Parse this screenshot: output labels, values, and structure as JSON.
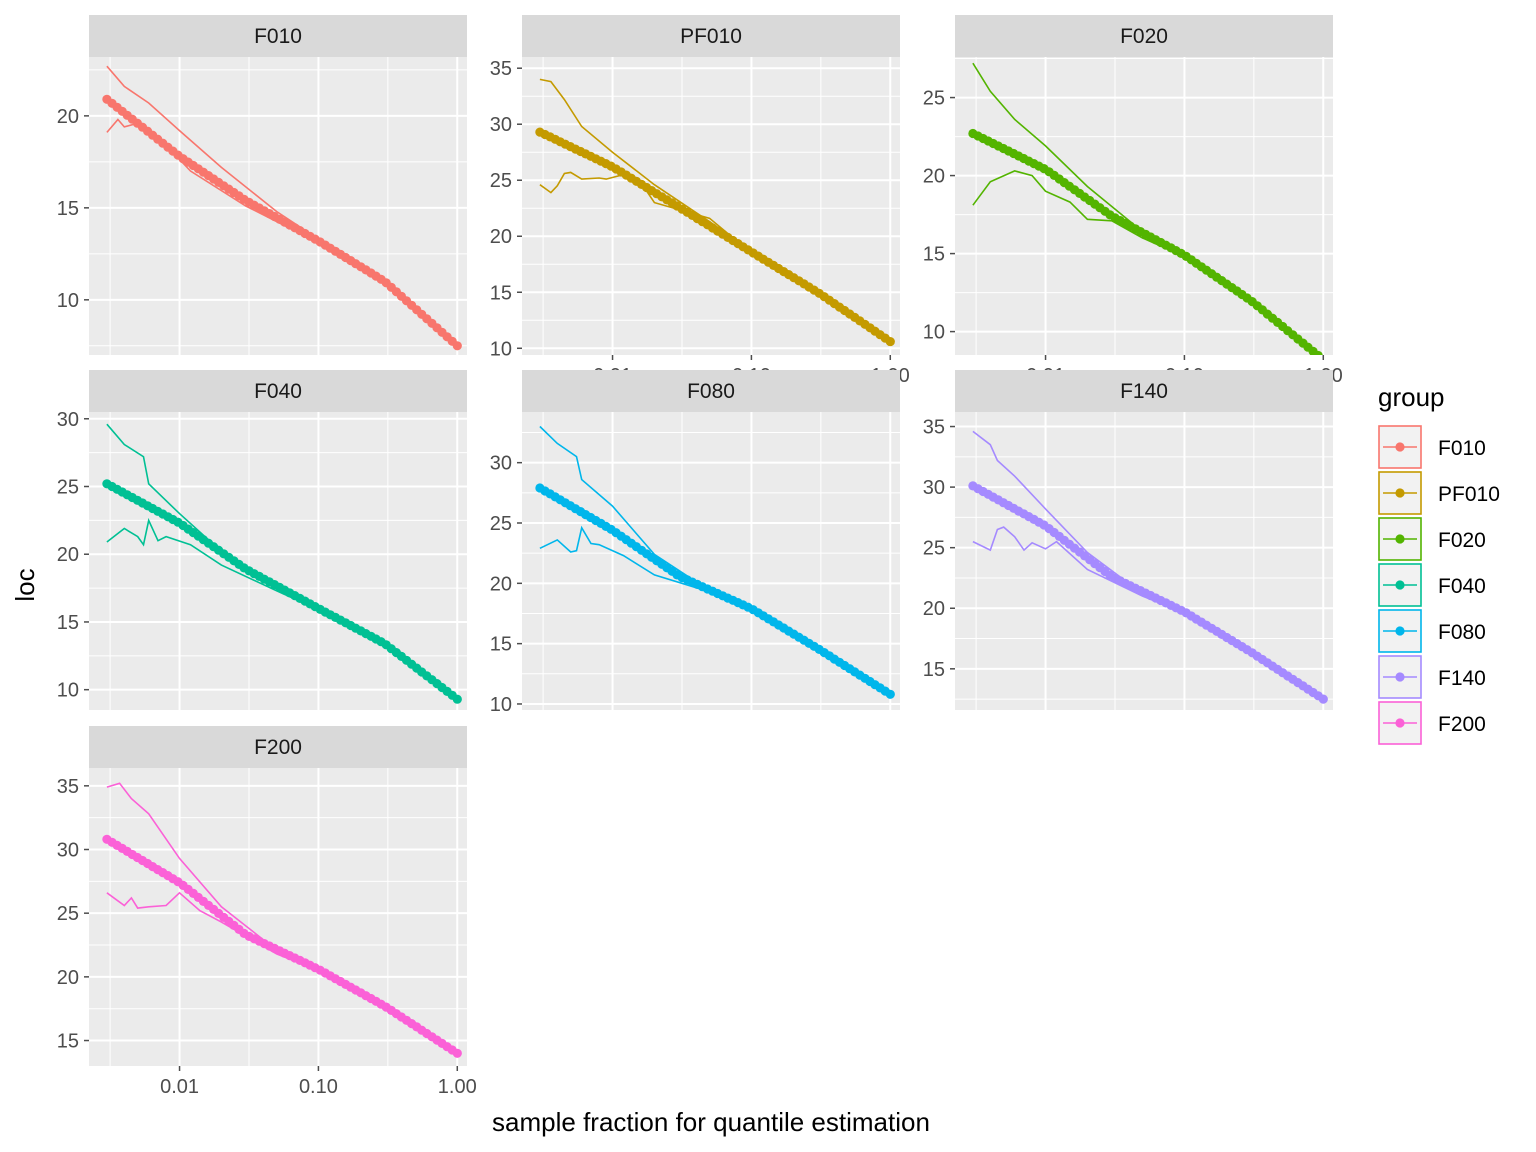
{
  "chart_data": {
    "type": "line",
    "xlabel": "sample fraction for quantile estimation",
    "ylabel": "loc",
    "x_scale": "log10",
    "x_ticks": [
      0.01,
      0.1,
      1.0
    ],
    "x_tick_labels": [
      "0.01",
      "0.10",
      "1.00"
    ],
    "xlim": [
      0.0025,
      1.0
    ],
    "legend": {
      "title": "group",
      "position": "right",
      "entries": [
        "F010",
        "PF010",
        "F020",
        "F040",
        "F080",
        "F140",
        "F200"
      ]
    },
    "panels": [
      {
        "group": "F010",
        "color": "#F8766D",
        "ylim": [
          7.0,
          23.2
        ],
        "y_ticks": [
          10,
          15,
          20
        ],
        "y_tick_labels": [
          "10",
          "15",
          "20"
        ],
        "estimate": [
          [
            0.003,
            20.9
          ],
          [
            0.01,
            17.8
          ],
          [
            0.03,
            15.4
          ],
          [
            0.1,
            13.2
          ],
          [
            0.3,
            11.0
          ],
          [
            1.0,
            7.5
          ]
        ],
        "upper": [
          [
            0.003,
            22.7
          ],
          [
            0.004,
            21.6
          ],
          [
            0.006,
            20.7
          ],
          [
            0.01,
            19.2
          ],
          [
            0.02,
            17.2
          ],
          [
            0.05,
            14.8
          ],
          [
            0.1,
            13.3
          ]
        ],
        "lower": [
          [
            0.003,
            19.1
          ],
          [
            0.0036,
            19.8
          ],
          [
            0.004,
            19.4
          ],
          [
            0.005,
            19.6
          ],
          [
            0.006,
            19.0
          ],
          [
            0.0075,
            18.5
          ],
          [
            0.008,
            18.4
          ],
          [
            0.012,
            17.0
          ],
          [
            0.03,
            15.1
          ],
          [
            0.1,
            13.1
          ]
        ]
      },
      {
        "group": "PF010",
        "color": "#C49A00",
        "ylim": [
          9.4,
          36.0
        ],
        "y_ticks": [
          10,
          15,
          20,
          25,
          30,
          35
        ],
        "y_tick_labels": [
          "10",
          "15",
          "20",
          "25",
          "30",
          "35"
        ],
        "estimate": [
          [
            0.003,
            29.3
          ],
          [
            0.01,
            26.2
          ],
          [
            0.03,
            22.6
          ],
          [
            0.1,
            18.6
          ],
          [
            0.3,
            15.0
          ],
          [
            1.0,
            10.6
          ]
        ],
        "upper": [
          [
            0.003,
            34.0
          ],
          [
            0.0036,
            33.8
          ],
          [
            0.0045,
            32.2
          ],
          [
            0.006,
            29.8
          ],
          [
            0.01,
            27.5
          ],
          [
            0.02,
            24.6
          ],
          [
            0.05,
            21.3
          ],
          [
            0.1,
            18.7
          ]
        ],
        "lower": [
          [
            0.003,
            24.6
          ],
          [
            0.0036,
            23.9
          ],
          [
            0.004,
            24.5
          ],
          [
            0.0045,
            25.6
          ],
          [
            0.005,
            25.7
          ],
          [
            0.006,
            25.1
          ],
          [
            0.008,
            25.2
          ],
          [
            0.009,
            25.1
          ],
          [
            0.012,
            25.5
          ],
          [
            0.016,
            24.8
          ],
          [
            0.02,
            23.0
          ],
          [
            0.05,
            21.6
          ],
          [
            0.1,
            18.5
          ]
        ]
      },
      {
        "group": "F020",
        "color": "#53B400",
        "ylim": [
          8.5,
          27.6
        ],
        "y_ticks": [
          10,
          15,
          20,
          25
        ],
        "y_tick_labels": [
          "10",
          "15",
          "20",
          "25"
        ],
        "estimate": [
          [
            0.003,
            22.7
          ],
          [
            0.01,
            20.4
          ],
          [
            0.03,
            17.4
          ],
          [
            0.1,
            14.9
          ],
          [
            0.3,
            12.0
          ],
          [
            1.0,
            8.2
          ]
        ],
        "upper": [
          [
            0.003,
            27.2
          ],
          [
            0.004,
            25.4
          ],
          [
            0.006,
            23.6
          ],
          [
            0.01,
            21.9
          ],
          [
            0.02,
            19.3
          ],
          [
            0.05,
            16.4
          ],
          [
            0.1,
            15.0
          ]
        ],
        "lower": [
          [
            0.003,
            18.1
          ],
          [
            0.004,
            19.6
          ],
          [
            0.006,
            20.3
          ],
          [
            0.008,
            20.0
          ],
          [
            0.01,
            19.0
          ],
          [
            0.015,
            18.3
          ],
          [
            0.02,
            17.2
          ],
          [
            0.03,
            17.1
          ],
          [
            0.05,
            16.0
          ],
          [
            0.1,
            14.8
          ]
        ]
      },
      {
        "group": "F040",
        "color": "#00C094",
        "ylim": [
          8.5,
          30.5
        ],
        "y_ticks": [
          10,
          15,
          20,
          25,
          30
        ],
        "y_tick_labels": [
          "10",
          "15",
          "20",
          "25",
          "30"
        ],
        "estimate": [
          [
            0.003,
            25.2
          ],
          [
            0.01,
            22.3
          ],
          [
            0.03,
            18.9
          ],
          [
            0.1,
            16.0
          ],
          [
            0.3,
            13.4
          ],
          [
            1.0,
            9.3
          ]
        ],
        "upper": [
          [
            0.003,
            29.6
          ],
          [
            0.004,
            28.1
          ],
          [
            0.0055,
            27.2
          ],
          [
            0.006,
            25.2
          ],
          [
            0.01,
            23.0
          ],
          [
            0.02,
            20.2
          ],
          [
            0.05,
            17.5
          ],
          [
            0.1,
            16.0
          ]
        ],
        "lower": [
          [
            0.003,
            20.9
          ],
          [
            0.004,
            21.9
          ],
          [
            0.005,
            21.3
          ],
          [
            0.0055,
            20.7
          ],
          [
            0.006,
            22.5
          ],
          [
            0.007,
            21.0
          ],
          [
            0.008,
            21.3
          ],
          [
            0.012,
            20.7
          ],
          [
            0.02,
            19.2
          ],
          [
            0.05,
            17.3
          ],
          [
            0.1,
            15.9
          ]
        ]
      },
      {
        "group": "F080",
        "color": "#00B6EB",
        "ylim": [
          9.5,
          34.2
        ],
        "y_ticks": [
          10,
          15,
          20,
          25,
          30
        ],
        "y_tick_labels": [
          "10",
          "15",
          "20",
          "25",
          "30"
        ],
        "estimate": [
          [
            0.003,
            27.9
          ],
          [
            0.01,
            24.4
          ],
          [
            0.03,
            20.6
          ],
          [
            0.1,
            17.9
          ],
          [
            0.3,
            14.6
          ],
          [
            1.0,
            10.8
          ]
        ],
        "upper": [
          [
            0.003,
            33.0
          ],
          [
            0.004,
            31.6
          ],
          [
            0.0055,
            30.5
          ],
          [
            0.006,
            28.6
          ],
          [
            0.01,
            26.4
          ],
          [
            0.02,
            22.4
          ],
          [
            0.05,
            19.4
          ],
          [
            0.1,
            18.0
          ]
        ],
        "lower": [
          [
            0.003,
            22.9
          ],
          [
            0.004,
            23.6
          ],
          [
            0.005,
            22.6
          ],
          [
            0.0055,
            22.7
          ],
          [
            0.006,
            24.6
          ],
          [
            0.007,
            23.3
          ],
          [
            0.008,
            23.2
          ],
          [
            0.012,
            22.3
          ],
          [
            0.02,
            20.7
          ],
          [
            0.05,
            19.3
          ],
          [
            0.1,
            17.8
          ]
        ]
      },
      {
        "group": "F140",
        "color": "#A58AFF",
        "ylim": [
          11.6,
          36.2
        ],
        "y_ticks": [
          15,
          20,
          25,
          30,
          35
        ],
        "y_tick_labels": [
          "15",
          "20",
          "25",
          "30",
          "35"
        ],
        "estimate": [
          [
            0.003,
            30.1
          ],
          [
            0.01,
            26.8
          ],
          [
            0.03,
            22.6
          ],
          [
            0.1,
            19.7
          ],
          [
            0.3,
            16.4
          ],
          [
            1.0,
            12.5
          ]
        ],
        "upper": [
          [
            0.003,
            34.6
          ],
          [
            0.004,
            33.5
          ],
          [
            0.0045,
            32.2
          ],
          [
            0.006,
            30.9
          ],
          [
            0.01,
            28.2
          ],
          [
            0.02,
            24.6
          ],
          [
            0.05,
            21.2
          ],
          [
            0.1,
            19.8
          ]
        ],
        "lower": [
          [
            0.003,
            25.5
          ],
          [
            0.004,
            24.8
          ],
          [
            0.0045,
            26.5
          ],
          [
            0.005,
            26.7
          ],
          [
            0.006,
            25.9
          ],
          [
            0.007,
            24.8
          ],
          [
            0.008,
            25.4
          ],
          [
            0.01,
            24.9
          ],
          [
            0.012,
            25.5
          ],
          [
            0.02,
            23.2
          ],
          [
            0.05,
            21.0
          ],
          [
            0.1,
            19.6
          ]
        ]
      },
      {
        "group": "F200",
        "color": "#FB61D7",
        "ylim": [
          13.0,
          36.4
        ],
        "y_ticks": [
          15,
          20,
          25,
          30,
          35
        ],
        "y_tick_labels": [
          "15",
          "20",
          "25",
          "30",
          "35"
        ],
        "estimate": [
          [
            0.003,
            30.8
          ],
          [
            0.01,
            27.4
          ],
          [
            0.03,
            23.3
          ],
          [
            0.1,
            20.6
          ],
          [
            0.3,
            17.7
          ],
          [
            1.0,
            14.0
          ]
        ],
        "upper": [
          [
            0.003,
            34.9
          ],
          [
            0.0037,
            35.2
          ],
          [
            0.0045,
            34.0
          ],
          [
            0.006,
            32.8
          ],
          [
            0.01,
            29.3
          ],
          [
            0.02,
            25.5
          ],
          [
            0.05,
            22.1
          ],
          [
            0.1,
            20.7
          ]
        ],
        "lower": [
          [
            0.003,
            26.6
          ],
          [
            0.004,
            25.6
          ],
          [
            0.0045,
            26.2
          ],
          [
            0.005,
            25.4
          ],
          [
            0.006,
            25.5
          ],
          [
            0.008,
            25.6
          ],
          [
            0.01,
            26.6
          ],
          [
            0.014,
            25.2
          ],
          [
            0.02,
            24.3
          ],
          [
            0.05,
            21.8
          ],
          [
            0.1,
            20.5
          ]
        ]
      }
    ]
  }
}
